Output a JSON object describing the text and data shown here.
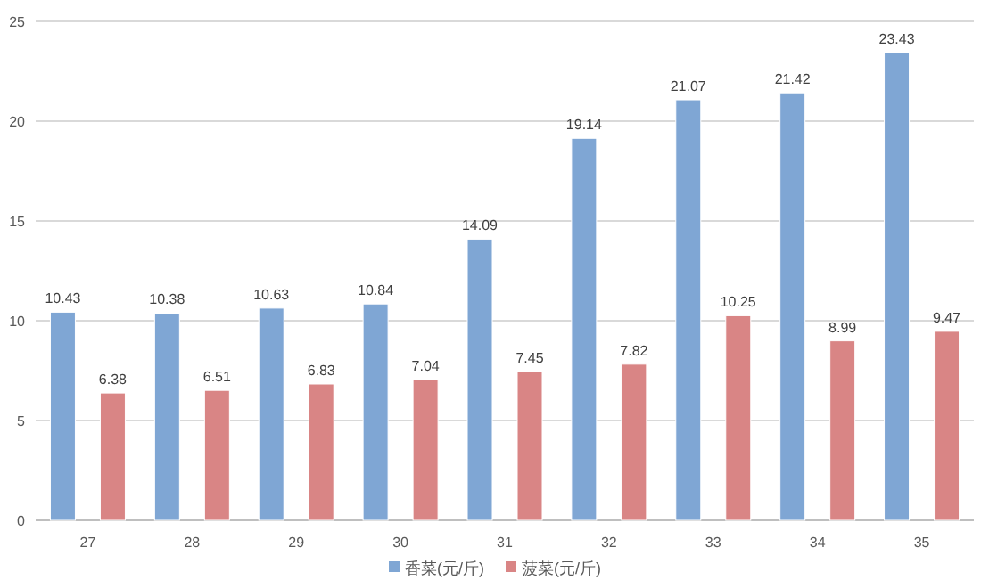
{
  "chart_data": {
    "type": "bar",
    "categories": [
      "27",
      "28",
      "29",
      "30",
      "31",
      "32",
      "33",
      "34",
      "35"
    ],
    "series": [
      {
        "name": "香菜(元/斤)",
        "color": "#7fa6d4",
        "values": [
          10.43,
          10.38,
          10.63,
          10.84,
          14.09,
          19.14,
          21.07,
          21.42,
          23.43
        ]
      },
      {
        "name": "菠菜(元/斤)",
        "color": "#d98585",
        "values": [
          6.38,
          6.51,
          6.83,
          7.04,
          7.45,
          7.82,
          10.25,
          8.99,
          9.47
        ]
      }
    ],
    "ylim": [
      0,
      25
    ],
    "yticks": [
      0,
      5,
      10,
      15,
      20,
      25
    ],
    "grid": "y",
    "legend": "bottom",
    "data_labels": true
  }
}
